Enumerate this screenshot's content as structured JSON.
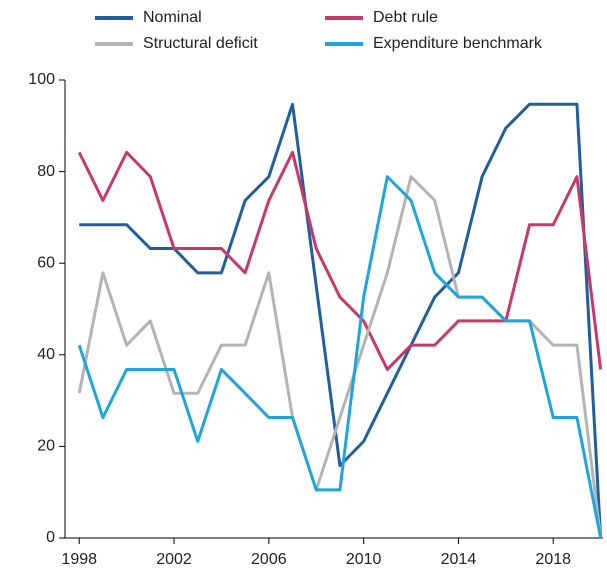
{
  "chart_data": {
    "type": "line",
    "x": [
      1998,
      1999,
      2000,
      2001,
      2002,
      2003,
      2004,
      2005,
      2006,
      2007,
      2008,
      2009,
      2010,
      2011,
      2012,
      2013,
      2014,
      2015,
      2016,
      2017,
      2018,
      2019,
      2020
    ],
    "series": [
      {
        "name": "Nominal",
        "color": "#1f5fa0",
        "values": [
          68.4,
          68.4,
          68.4,
          63.2,
          63.2,
          57.9,
          57.9,
          73.7,
          78.9,
          94.7,
          55,
          15.8,
          21.1,
          31.6,
          42.1,
          52.6,
          57.9,
          78.9,
          89.5,
          94.7,
          94.7,
          94.7,
          0
        ]
      },
      {
        "name": "Debt rule",
        "color": "#c8386b",
        "values": [
          84.2,
          73.7,
          84.2,
          78.9,
          63.2,
          63.2,
          63.2,
          57.9,
          73.7,
          84.2,
          63.2,
          52.6,
          47.4,
          36.8,
          42.1,
          42.1,
          47.4,
          47.4,
          47.4,
          68.4,
          68.4,
          78.9,
          36.8
        ]
      },
      {
        "name": "Structural deficit",
        "color": "#b4b4b4",
        "values": [
          31.6,
          57.9,
          42.1,
          47.4,
          31.6,
          31.6,
          42.1,
          42.1,
          57.9,
          26.3,
          10.5,
          26.3,
          42.1,
          57.9,
          78.9,
          73.7,
          52.6,
          52.6,
          47.4,
          47.4,
          42.1,
          42.1,
          0
        ]
      },
      {
        "name": "Expenditure benchmark",
        "color": "#1ea6dc",
        "values": [
          42.1,
          26.3,
          36.8,
          36.8,
          36.8,
          21.1,
          36.8,
          31.6,
          26.3,
          26.3,
          10.5,
          10.5,
          52.6,
          78.9,
          73.7,
          57.9,
          52.6,
          52.6,
          47.4,
          47.4,
          26.3,
          26.3,
          0
        ]
      }
    ],
    "xlim": [
      1997.4,
      2020.1
    ],
    "xticks": [
      1998,
      2002,
      2006,
      2010,
      2014,
      2018
    ],
    "ylim": [
      0,
      100
    ],
    "yticks": [
      0,
      20,
      40,
      60,
      80,
      100
    ]
  }
}
